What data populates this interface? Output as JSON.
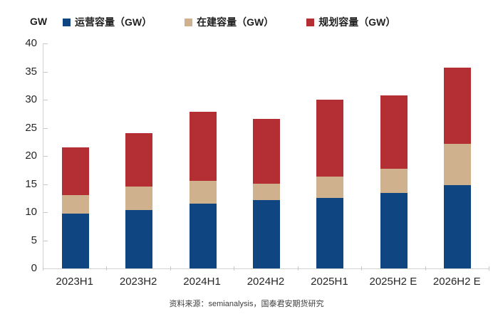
{
  "unit_label": "GW",
  "source_note": "资料来源：semianalysis，国泰君安期货研究",
  "colors": {
    "operating": "#0f4681",
    "under_construction": "#d0b18e",
    "planned": "#b42f33",
    "axis_line": "#d2d2d2",
    "tick_mark": "#c7c7c7",
    "text": "#262626"
  },
  "chart_data": {
    "type": "bar",
    "stacked": true,
    "title": "",
    "xlabel": "",
    "ylabel": "GW",
    "ylim": [
      0,
      40
    ],
    "ytick_step": 5,
    "grid": false,
    "legend_position": "top",
    "categories": [
      "2023H1",
      "2023H2",
      "2024H1",
      "2024H2",
      "2025H1",
      "2025H2 E",
      "2026H2 E"
    ],
    "series": [
      {
        "name": "运营容量（GW）",
        "color": "#0f4681",
        "values": [
          9.7,
          10.4,
          11.5,
          12.1,
          12.5,
          13.4,
          14.8
        ]
      },
      {
        "name": "在建容量（GW）",
        "color": "#d0b18e",
        "values": [
          3.3,
          4.1,
          4.1,
          3.0,
          3.8,
          4.3,
          7.3
        ]
      },
      {
        "name": "规划容量（GW）",
        "color": "#b42f33",
        "values": [
          8.5,
          9.5,
          12.3,
          11.5,
          13.7,
          13.1,
          13.6
        ]
      }
    ],
    "totals": [
      21.5,
      24.0,
      27.9,
      26.6,
      30.0,
      30.8,
      35.7
    ]
  }
}
